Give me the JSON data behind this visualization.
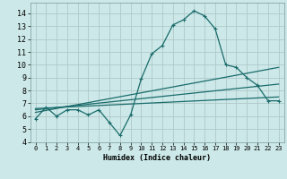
{
  "xlabel": "Humidex (Indice chaleur)",
  "bg_color": "#cce8e8",
  "grid_color": "#b0c8c8",
  "line_color": "#1a6b6b",
  "xlim": [
    -0.5,
    23.5
  ],
  "ylim": [
    4,
    14.8
  ],
  "yticks": [
    4,
    5,
    6,
    7,
    8,
    9,
    10,
    11,
    12,
    13,
    14
  ],
  "xticks": [
    0,
    1,
    2,
    3,
    4,
    5,
    6,
    7,
    8,
    9,
    10,
    11,
    12,
    13,
    14,
    15,
    16,
    17,
    18,
    19,
    20,
    21,
    22,
    23
  ],
  "curve1_x": [
    0,
    1,
    2,
    3,
    4,
    5,
    6,
    7,
    8,
    9,
    10,
    11,
    12,
    13,
    14,
    15,
    16,
    17,
    18,
    19,
    20,
    21,
    22,
    23
  ],
  "curve1_y": [
    5.8,
    6.7,
    6.0,
    6.5,
    6.5,
    6.1,
    6.5,
    5.5,
    4.5,
    6.1,
    8.9,
    10.85,
    11.5,
    13.1,
    13.5,
    14.2,
    13.8,
    12.8,
    10.0,
    9.8,
    9.0,
    8.4,
    7.2,
    7.2
  ],
  "line2_x": [
    0,
    23
  ],
  "line2_y": [
    6.3,
    9.8
  ],
  "line3_x": [
    0,
    23
  ],
  "line3_y": [
    6.5,
    8.5
  ],
  "line4_x": [
    0,
    23
  ],
  "line4_y": [
    6.6,
    7.5
  ]
}
